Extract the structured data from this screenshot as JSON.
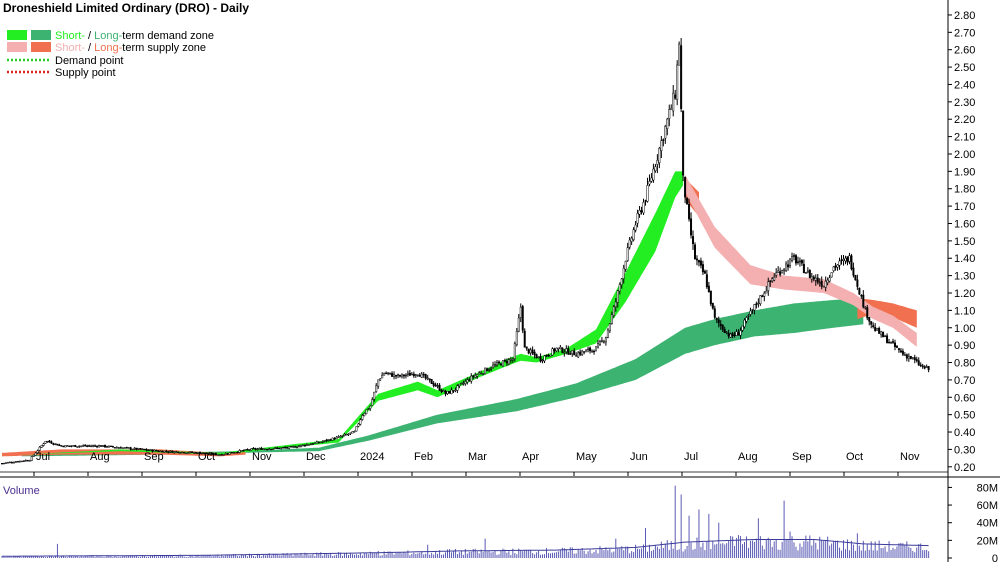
{
  "chart_data": {
    "type": "candlestick",
    "title": "Droneshield Limited Ordinary (DRO) - Daily",
    "legend": [
      {
        "label_a": "Short-",
        "sep": " / ",
        "label_b": "Long-",
        "rest": "term demand zone",
        "color_short": "#22ee22",
        "color_long": "#3cb371",
        "kind": "zone"
      },
      {
        "label_a": "Short-",
        "sep": " / ",
        "label_b": "Long-",
        "rest": "term supply zone",
        "color_short": "#f4b0b0",
        "color_long": "#f07050",
        "kind": "zone"
      },
      {
        "text": "Demand point",
        "color": "#22cc22",
        "kind": "dotted"
      },
      {
        "text": "Supply point",
        "color": "#dd2222",
        "kind": "dotted"
      }
    ],
    "price_axis": {
      "ticks": [
        "0.20",
        "0.30",
        "0.40",
        "0.50",
        "0.60",
        "0.70",
        "0.80",
        "0.90",
        "1.00",
        "1.10",
        "1.20",
        "1.30",
        "1.40",
        "1.50",
        "1.60",
        "1.70",
        "1.80",
        "1.90",
        "2.00",
        "2.10",
        "2.20",
        "2.30",
        "2.40",
        "2.50",
        "2.60",
        "2.70",
        "2.80"
      ],
      "ylim": [
        0.17,
        2.84
      ]
    },
    "x_axis": {
      "labels": [
        "Jul",
        "Aug",
        "Sep",
        "Oct",
        "Nov",
        "Dec",
        "2024",
        "Feb",
        "Mar",
        "Apr",
        "May",
        "Jun",
        "Jul",
        "Aug",
        "Sep",
        "Oct",
        "Nov"
      ],
      "bold": [
        "2024"
      ]
    },
    "volume_panel": {
      "label": "Volume",
      "ticks": [
        "0",
        "20M",
        "40M",
        "60M",
        "80M"
      ],
      "ylim": [
        0,
        85
      ]
    },
    "price_path": [
      [
        0,
        0.22
      ],
      [
        14,
        0.24
      ],
      [
        22,
        0.35
      ],
      [
        30,
        0.32
      ],
      [
        50,
        0.32
      ],
      [
        80,
        0.29
      ],
      [
        100,
        0.28
      ],
      [
        110,
        0.27
      ],
      [
        125,
        0.3
      ],
      [
        145,
        0.31
      ],
      [
        160,
        0.34
      ],
      [
        170,
        0.37
      ],
      [
        178,
        0.4
      ],
      [
        182,
        0.5
      ],
      [
        186,
        0.55
      ],
      [
        190,
        0.7
      ],
      [
        193,
        0.74
      ],
      [
        200,
        0.72
      ],
      [
        210,
        0.74
      ],
      [
        215,
        0.7
      ],
      [
        220,
        0.66
      ],
      [
        224,
        0.62
      ],
      [
        228,
        0.64
      ],
      [
        238,
        0.72
      ],
      [
        248,
        0.78
      ],
      [
        258,
        0.82
      ],
      [
        262,
        1.12
      ],
      [
        264,
        0.88
      ],
      [
        272,
        0.82
      ],
      [
        280,
        0.88
      ],
      [
        290,
        0.85
      ],
      [
        300,
        0.88
      ],
      [
        305,
        0.95
      ],
      [
        310,
        1.15
      ],
      [
        315,
        1.4
      ],
      [
        320,
        1.6
      ],
      [
        325,
        1.75
      ],
      [
        330,
        1.95
      ],
      [
        335,
        2.15
      ],
      [
        340,
        2.35
      ],
      [
        342,
        2.65
      ],
      [
        344,
        1.85
      ],
      [
        347,
        1.6
      ],
      [
        350,
        1.4
      ],
      [
        355,
        1.3
      ],
      [
        360,
        1.05
      ],
      [
        368,
        0.95
      ],
      [
        372,
        0.97
      ],
      [
        380,
        1.12
      ],
      [
        390,
        1.3
      ],
      [
        400,
        1.4
      ],
      [
        408,
        1.3
      ],
      [
        415,
        1.25
      ],
      [
        420,
        1.35
      ],
      [
        428,
        1.4
      ],
      [
        432,
        1.25
      ],
      [
        436,
        1.1
      ],
      [
        440,
        1.0
      ],
      [
        445,
        0.95
      ],
      [
        450,
        0.9
      ],
      [
        455,
        0.85
      ],
      [
        460,
        0.82
      ],
      [
        464,
        0.78
      ],
      [
        468,
        0.76
      ]
    ],
    "zones": {
      "short_demand": [
        [
          10,
          0.27,
          0.27
        ],
        [
          60,
          0.29,
          0.3
        ],
        [
          110,
          0.27,
          0.28
        ],
        [
          170,
          0.34,
          0.36
        ],
        [
          190,
          0.58,
          0.62
        ],
        [
          210,
          0.64,
          0.69
        ],
        [
          220,
          0.6,
          0.64
        ],
        [
          240,
          0.71,
          0.74
        ],
        [
          255,
          0.78,
          0.82
        ],
        [
          262,
          0.81,
          0.85
        ],
        [
          270,
          0.8,
          0.83
        ],
        [
          285,
          0.85,
          0.88
        ],
        [
          300,
          0.91,
          0.99
        ],
        [
          315,
          1.15,
          1.32
        ],
        [
          330,
          1.44,
          1.66
        ],
        [
          340,
          1.75,
          1.9
        ],
        [
          344,
          1.82,
          1.9
        ]
      ],
      "long_demand": [
        [
          10,
          0.26,
          0.27
        ],
        [
          80,
          0.27,
          0.28
        ],
        [
          120,
          0.28,
          0.29
        ],
        [
          160,
          0.29,
          0.31
        ],
        [
          185,
          0.35,
          0.38
        ],
        [
          220,
          0.45,
          0.5
        ],
        [
          260,
          0.52,
          0.59
        ],
        [
          290,
          0.6,
          0.68
        ],
        [
          320,
          0.7,
          0.82
        ],
        [
          345,
          0.85,
          1.0
        ],
        [
          360,
          0.9,
          1.05
        ],
        [
          380,
          0.95,
          1.1
        ],
        [
          400,
          0.97,
          1.14
        ],
        [
          420,
          1.0,
          1.16
        ],
        [
          435,
          1.02,
          1.17
        ]
      ],
      "short_supply": [
        [
          345,
          1.78,
          1.88
        ],
        [
          360,
          1.46,
          1.58
        ],
        [
          378,
          1.25,
          1.36
        ],
        [
          395,
          1.22,
          1.3
        ],
        [
          415,
          1.2,
          1.28
        ],
        [
          430,
          1.13,
          1.2
        ],
        [
          440,
          1.05,
          1.12
        ],
        [
          450,
          1.0,
          1.07
        ],
        [
          462,
          0.89,
          0.97
        ]
      ],
      "long_supply": [
        [
          0,
          0.26,
          0.28
        ],
        [
          30,
          0.27,
          0.3
        ],
        [
          80,
          0.27,
          0.3
        ],
        [
          110,
          0.26,
          0.28
        ],
        [
          123,
          0.27,
          0.29
        ],
        [
          345,
          1.74,
          1.86
        ],
        [
          352,
          1.64,
          1.78
        ],
        [
          432,
          1.05,
          1.17
        ],
        [
          440,
          1.08,
          1.16
        ],
        [
          450,
          1.06,
          1.14
        ],
        [
          462,
          1.0,
          1.1
        ]
      ],
      "long_supply_gaps": [
        [
          123,
          345
        ],
        [
          352,
          432
        ]
      ]
    },
    "volume_spikes": [
      [
        28,
        16
      ],
      [
        190,
        8
      ],
      [
        215,
        15
      ],
      [
        226,
        10
      ],
      [
        244,
        22
      ],
      [
        262,
        9
      ],
      [
        310,
        22
      ],
      [
        325,
        34
      ],
      [
        340,
        82
      ],
      [
        343,
        72
      ],
      [
        347,
        48
      ],
      [
        352,
        55
      ],
      [
        357,
        50
      ],
      [
        362,
        40
      ],
      [
        372,
        26
      ],
      [
        382,
        45
      ],
      [
        395,
        65
      ],
      [
        398,
        30
      ],
      [
        432,
        28
      ]
    ],
    "volume_avg": [
      [
        0,
        2
      ],
      [
        100,
        3
      ],
      [
        190,
        6
      ],
      [
        230,
        8
      ],
      [
        280,
        9
      ],
      [
        320,
        12
      ],
      [
        345,
        18
      ],
      [
        380,
        21
      ],
      [
        410,
        21
      ],
      [
        435,
        16
      ],
      [
        468,
        14
      ]
    ],
    "grid": false,
    "legend_position": "top-left"
  }
}
